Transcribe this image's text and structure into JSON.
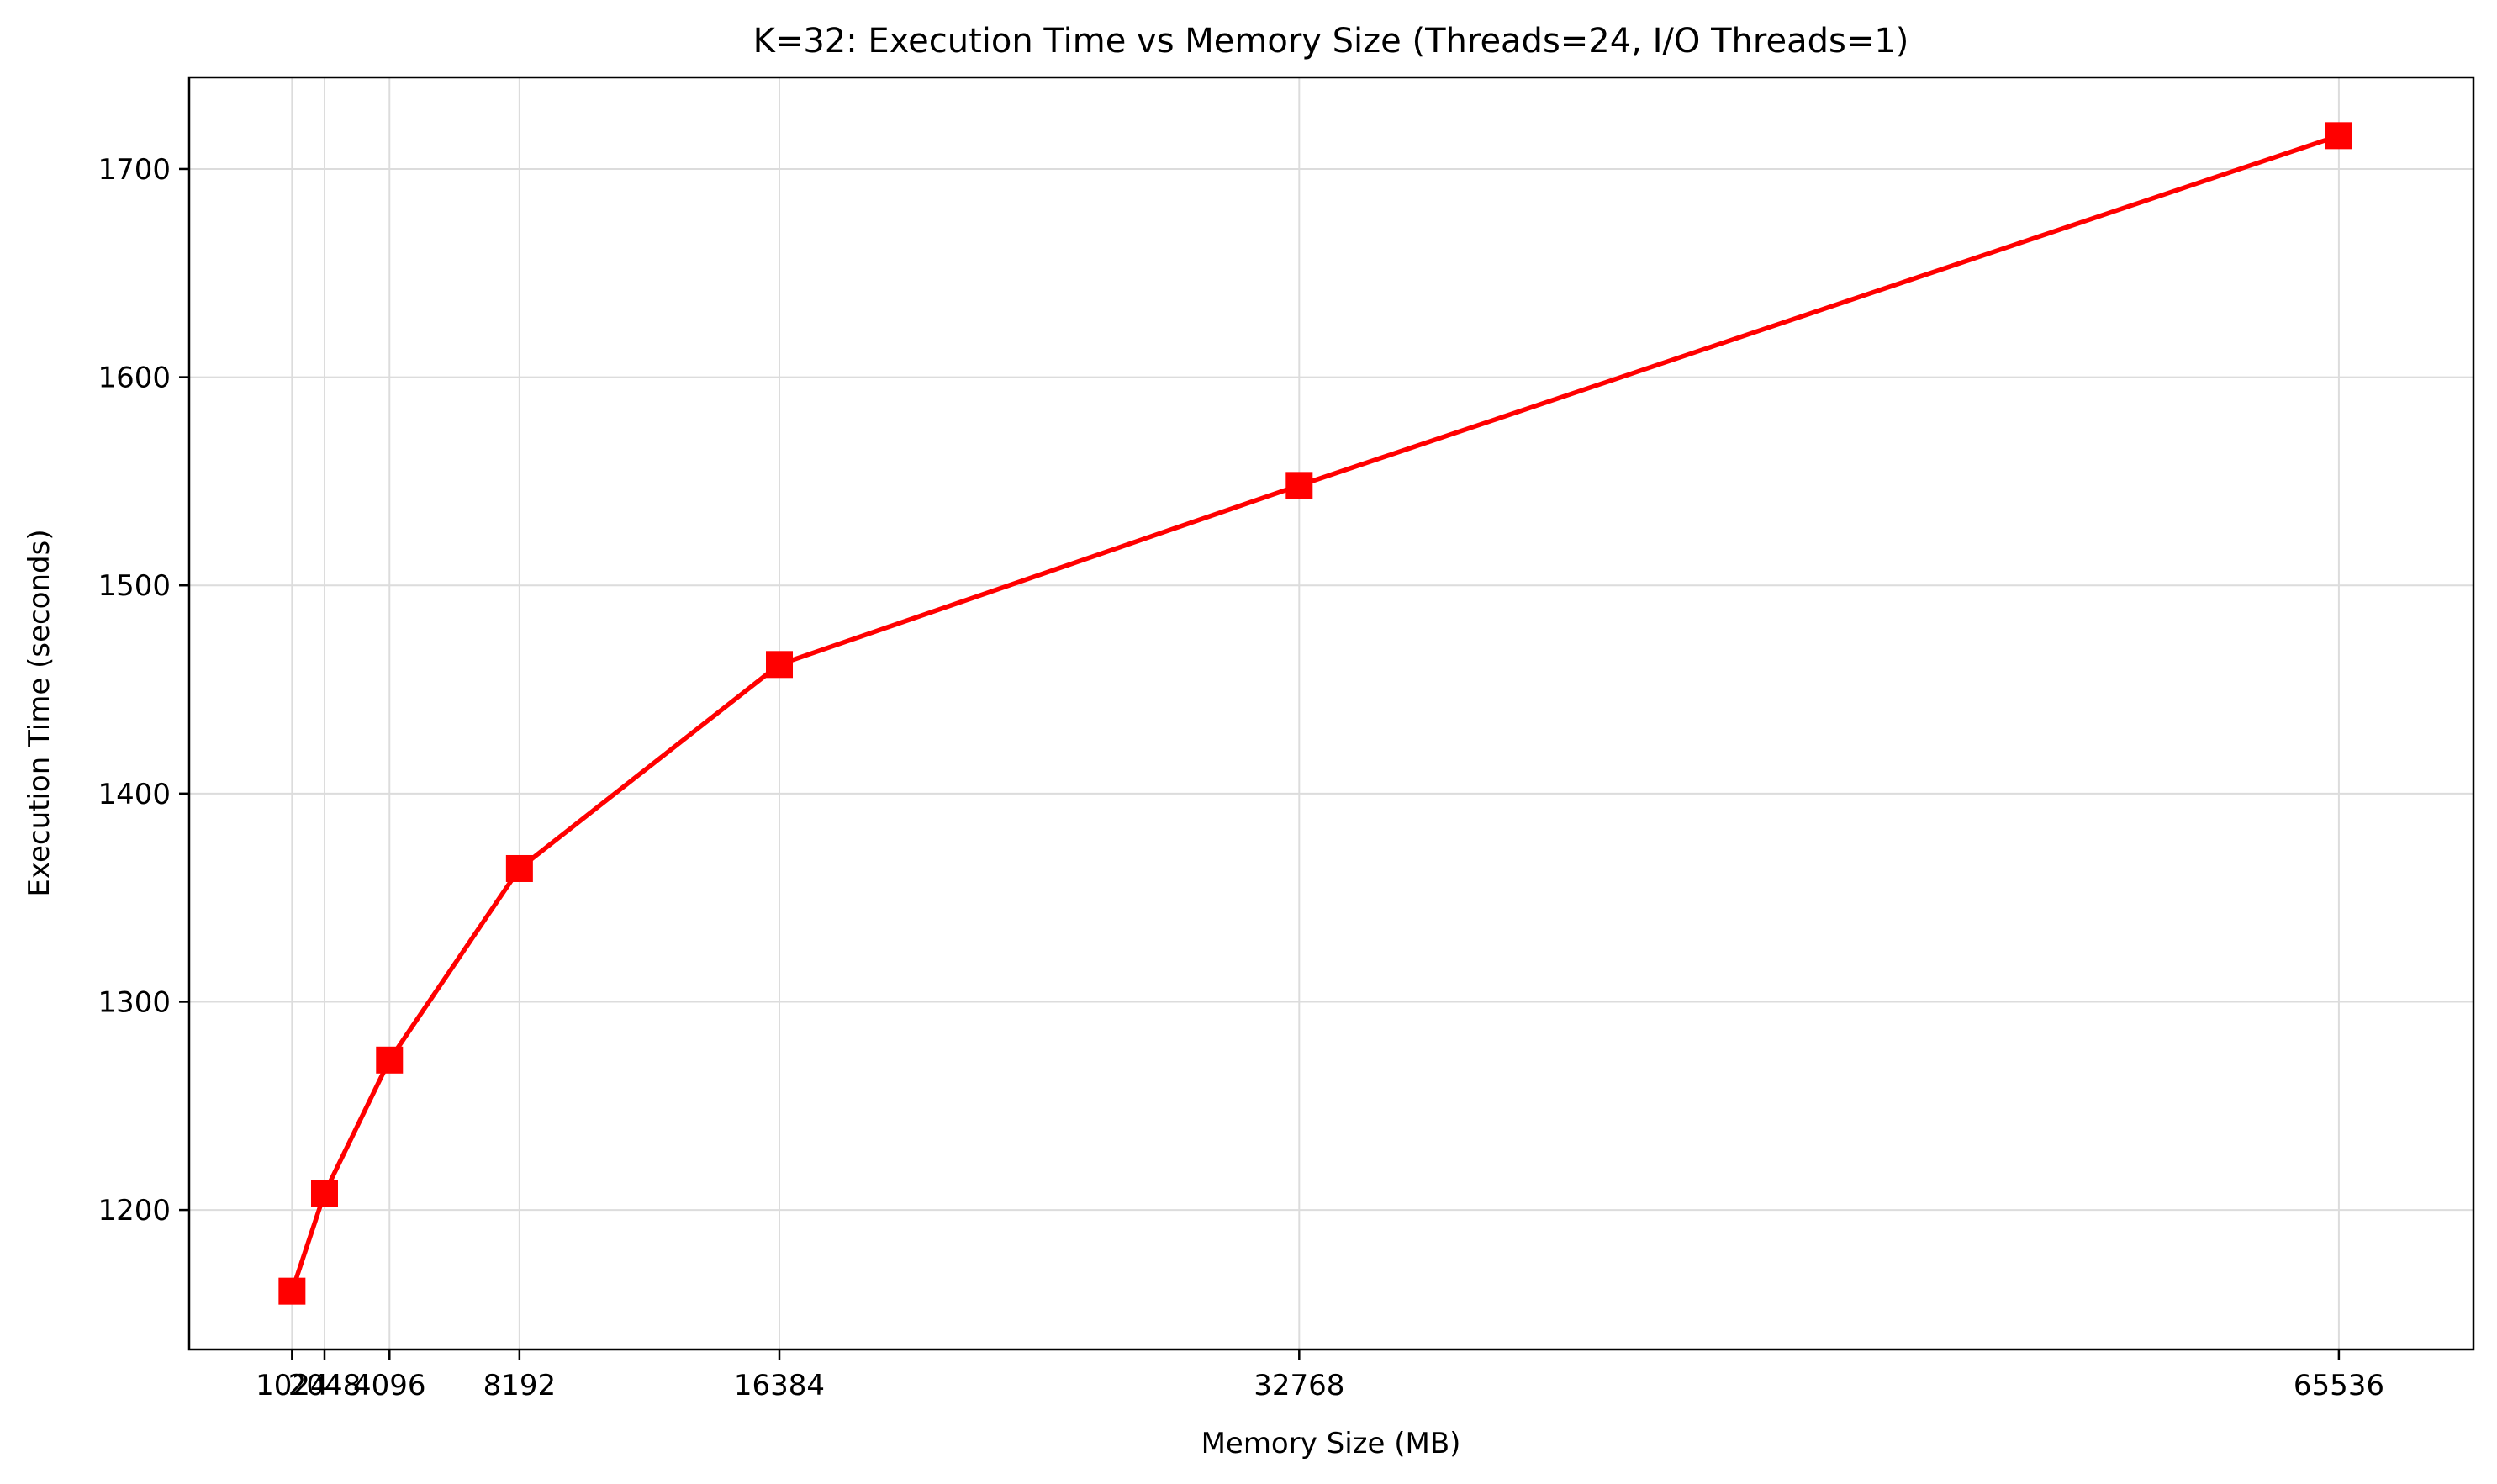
{
  "chart_data": {
    "type": "line",
    "title": "K=32: Execution Time vs Memory Size (Threads=24, I/O Threads=1)",
    "xlabel": "Memory Size (MB)",
    "ylabel": "Execution Time (seconds)",
    "xlim": [
      -2218,
      69778
    ],
    "ylim": [
      1133,
      1744
    ],
    "x_ticks": [
      1024,
      2048,
      4096,
      8192,
      16384,
      32768,
      65536
    ],
    "y_ticks": [
      1200,
      1300,
      1400,
      1500,
      1600,
      1700
    ],
    "grid": true,
    "series": [
      {
        "color": "#ff0000",
        "marker": "square",
        "points": [
          {
            "x": 1024,
            "y": 1161
          },
          {
            "x": 2048,
            "y": 1208
          },
          {
            "x": 4096,
            "y": 1272
          },
          {
            "x": 8192,
            "y": 1364
          },
          {
            "x": 16384,
            "y": 1462
          },
          {
            "x": 32768,
            "y": 1548
          },
          {
            "x": 65536,
            "y": 1716
          }
        ]
      }
    ]
  }
}
